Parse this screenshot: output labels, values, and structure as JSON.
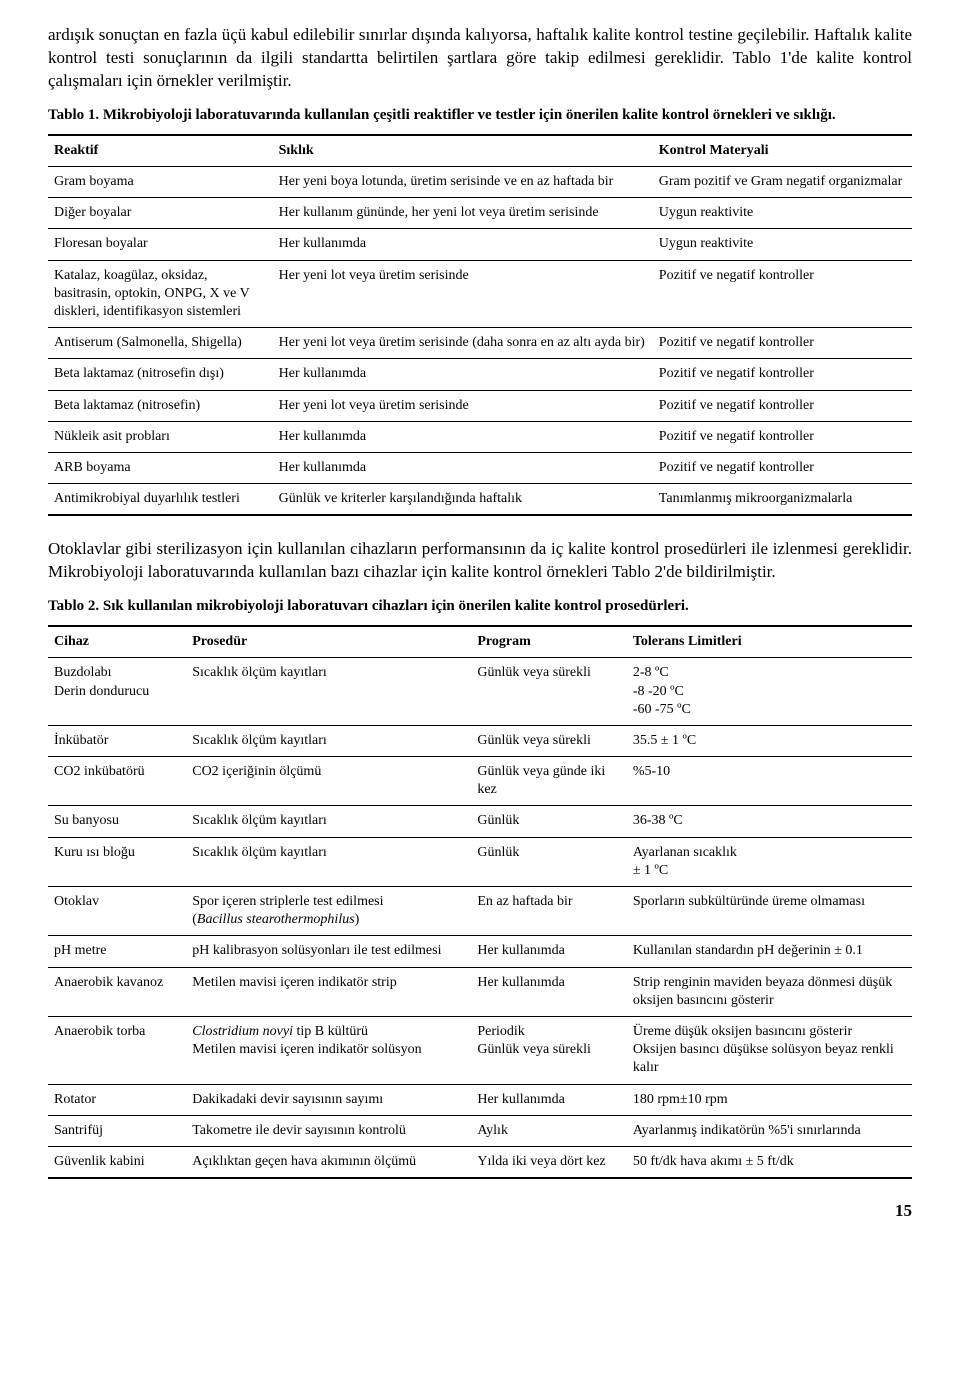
{
  "paragraphs": {
    "intro": "ardışık sonuçtan en fazla üçü kabul edilebilir sınırlar dışında kalıyorsa, haftalık kalite kontrol testine geçilebilir. Haftalık kalite kontrol testi sonuçlarının da ilgili standartta belirtilen şartlara göre takip edilmesi gereklidir. Tablo 1'de kalite kontrol çalışmaları için örnekler verilmiştir.",
    "mid": "Otoklavlar gibi sterilizasyon için kullanılan cihazların performansının da iç kalite kontrol prosedürleri ile izlenmesi gereklidir. Mikrobiyoloji laboratuvarında kullanılan bazı cihazlar için kalite kontrol örnekleri Tablo 2'de bildirilmiştir."
  },
  "table1": {
    "caption": "Tablo 1. Mikrobiyoloji laboratuvarında kullanılan çeşitli reaktifler ve testler için önerilen kalite kontrol örnekleri ve sıklığı.",
    "columns": [
      "Reaktif",
      "Sıklık",
      "Kontrol Materyali"
    ],
    "rows": [
      [
        "Gram boyama",
        "Her yeni boya lotunda, üretim serisinde ve en az haftada bir",
        "Gram pozitif ve Gram negatif organizmalar"
      ],
      [
        "Diğer boyalar",
        "Her kullanım gününde, her yeni lot veya üretim serisinde",
        "Uygun reaktivite"
      ],
      [
        "Floresan boyalar",
        "Her kullanımda",
        "Uygun reaktivite"
      ],
      [
        "Katalaz, koagülaz, oksidaz, basitrasin, optokin, ONPG, X ve V diskleri, identifikasyon sistemleri",
        "Her yeni lot veya üretim serisinde",
        "Pozitif ve negatif kontroller"
      ],
      [
        "Antiserum (Salmonella, Shigella)",
        "Her yeni lot veya üretim serisinde (daha sonra en az altı ayda bir)",
        "Pozitif ve negatif kontroller"
      ],
      [
        "Beta laktamaz (nitrosefin dışı)",
        "Her kullanımda",
        "Pozitif ve negatif kontroller"
      ],
      [
        "Beta laktamaz (nitrosefin)",
        "Her yeni lot veya üretim serisinde",
        "Pozitif ve negatif kontroller"
      ],
      [
        "Nükleik asit probları",
        "Her kullanımda",
        "Pozitif ve negatif kontroller"
      ],
      [
        "ARB boyama",
        "Her kullanımda",
        "Pozitif ve negatif kontroller"
      ],
      [
        "Antimikrobiyal duyarlılık testleri",
        "Günlük ve kriterler karşılandığında haftalık",
        "Tanımlanmış mikroorganizmalarla"
      ]
    ]
  },
  "table2": {
    "caption": "Tablo 2. Sık kullanılan mikrobiyoloji laboratuvarı cihazları için önerilen kalite kontrol prosedürleri.",
    "columns": [
      "Cihaz",
      "Prosedür",
      "Program",
      "Tolerans Limitleri"
    ],
    "rows": [
      {
        "cells": [
          "Buzdolabı\nDerin dondurucu",
          "Sıcaklık ölçüm kayıtları",
          "Günlük veya sürekli",
          "2-8 ºC\n-8  -20 ºC\n-60  -75 ºC"
        ]
      },
      {
        "cells": [
          "İnkübatör",
          "Sıcaklık ölçüm kayıtları",
          "Günlük veya sürekli",
          "35.5 ± 1 ºC"
        ]
      },
      {
        "cells": [
          "CO2 inkübatörü",
          "CO2 içeriğinin ölçümü",
          "Günlük veya günde iki kez",
          "%5-10"
        ]
      },
      {
        "cells": [
          "Su banyosu",
          "Sıcaklık ölçüm kayıtları",
          "Günlük",
          "36-38 ºC"
        ]
      },
      {
        "cells": [
          "Kuru ısı bloğu",
          "Sıcaklık ölçüm kayıtları",
          "Günlük",
          "Ayarlanan sıcaklık\n± 1 ºC"
        ]
      },
      {
        "cells": [
          "Otoklav",
          "Spor içeren striplerle test edilmesi\n(Bacillus stearothermophilus)",
          "En az haftada bir",
          "Sporların subkültüründe üreme olmaması"
        ],
        "italic_line2_col2": true
      },
      {
        "cells": [
          "pH metre",
          "pH kalibrasyon solüsyonları ile test edilmesi",
          "Her kullanımda",
          "Kullanılan standardın pH değerinin ± 0.1"
        ]
      },
      {
        "cells": [
          "Anaerobik kavanoz",
          "Metilen mavisi içeren indikatör strip",
          "Her kullanımda",
          "Strip renginin maviden beyaza dönmesi düşük oksijen basıncını gösterir"
        ]
      },
      {
        "cells": [
          "Anaerobik torba",
          "Clostridium novyi tip B kültürü\nMetilen mavisi içeren indikatör solüsyon",
          "Periodik\nGünlük veya sürekli",
          "Üreme düşük oksijen basıncını gösterir\nOksijen basıncı düşükse solüsyon beyaz renkli kalır"
        ],
        "italic_line1_col2": true
      },
      {
        "cells": [
          "Rotator",
          "Dakikadaki devir sayısının sayımı",
          "Her kullanımda",
          "180 rpm±10 rpm"
        ]
      },
      {
        "cells": [
          "Santrifüj",
          "Takometre ile devir sayısının kontrolü",
          "Aylık",
          "Ayarlanmış indikatörün %5'i sınırlarında"
        ]
      },
      {
        "cells": [
          "Güvenlik kabini",
          "Açıklıktan geçen hava akımının ölçümü",
          "Yılda iki veya dört kez",
          "50 ft/dk hava akımı ± 5 ft/dk"
        ]
      }
    ]
  },
  "page_number": "15"
}
